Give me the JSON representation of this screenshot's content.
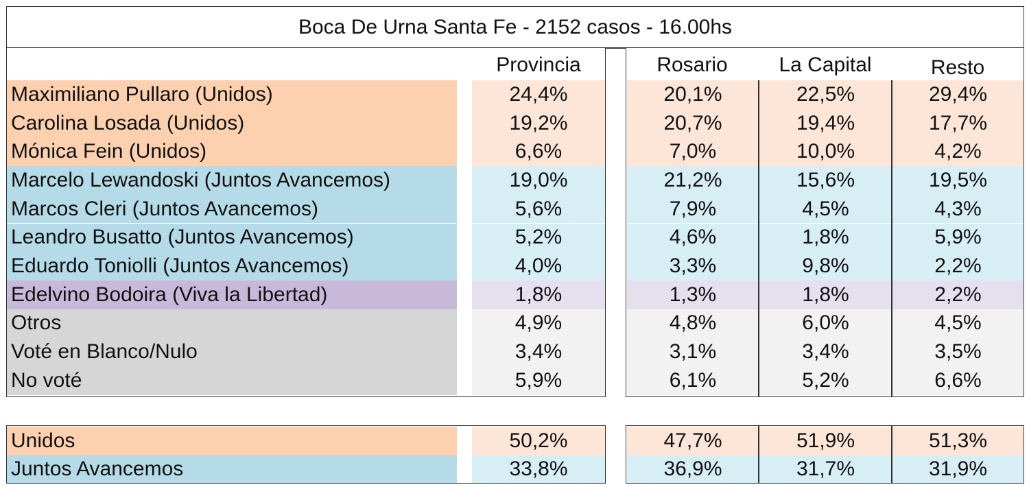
{
  "title": "Boca De Urna Santa Fe - 2152 casos - 16.00hs",
  "columns": [
    "Provincia",
    "Rosario",
    "La Capital",
    "Resto"
  ],
  "colors": {
    "unidos_dark": "#fdd0b0",
    "unidos_light": "#fde6d8",
    "juntos_dark": "#b6dbe8",
    "juntos_light": "#d8eef5",
    "viva_dark": "#c8b8da",
    "viva_light": "#e6e0ee",
    "otros_dark": "#d6d6d6",
    "otros_light": "#f2f2f2"
  },
  "rows": [
    {
      "name": "Maximiliano Pullaro (Unidos)",
      "group": "unidos",
      "values": [
        "24,4%",
        "20,1%",
        "22,5%",
        "29,4%"
      ]
    },
    {
      "name": "Carolina Losada (Unidos)",
      "group": "unidos",
      "values": [
        "19,2%",
        "20,7%",
        "19,4%",
        "17,7%"
      ]
    },
    {
      "name": "Mónica Fein (Unidos)",
      "group": "unidos",
      "values": [
        "6,6%",
        "7,0%",
        "10,0%",
        "4,2%"
      ]
    },
    {
      "name": "Marcelo Lewandoski (Juntos Avancemos)",
      "group": "juntos",
      "values": [
        "19,0%",
        "21,2%",
        "15,6%",
        "19,5%"
      ]
    },
    {
      "name": "Marcos Cleri (Juntos Avancemos)",
      "group": "juntos",
      "values": [
        "5,6%",
        "7,9%",
        "4,5%",
        "4,3%"
      ]
    },
    {
      "name": "Leandro Busatto (Juntos Avancemos)",
      "group": "juntos",
      "values": [
        "5,2%",
        "4,6%",
        "1,8%",
        "5,9%"
      ]
    },
    {
      "name": "Eduardo Toniolli (Juntos Avancemos)",
      "group": "juntos",
      "values": [
        "4,0%",
        "3,3%",
        "9,8%",
        "2,2%"
      ]
    },
    {
      "name": "Edelvino Bodoira (Viva la Libertad)",
      "group": "viva",
      "values": [
        "1,8%",
        "1,3%",
        "1,8%",
        "2,2%"
      ]
    },
    {
      "name": "Otros",
      "group": "otros",
      "values": [
        "4,9%",
        "4,8%",
        "6,0%",
        "4,5%"
      ]
    },
    {
      "name": "Voté en Blanco/Nulo",
      "group": "otros",
      "values": [
        "3,4%",
        "3,1%",
        "3,4%",
        "3,5%"
      ]
    },
    {
      "name": "No voté",
      "group": "otros",
      "values": [
        "5,9%",
        "6,1%",
        "5,2%",
        "6,6%"
      ]
    }
  ],
  "totals": [
    {
      "name": "Unidos",
      "group": "unidos",
      "values": [
        "50,2%",
        "47,7%",
        "51,9%",
        "51,3%"
      ]
    },
    {
      "name": "Juntos Avancemos",
      "group": "juntos",
      "values": [
        "33,8%",
        "36,9%",
        "31,7%",
        "31,9%"
      ]
    }
  ]
}
